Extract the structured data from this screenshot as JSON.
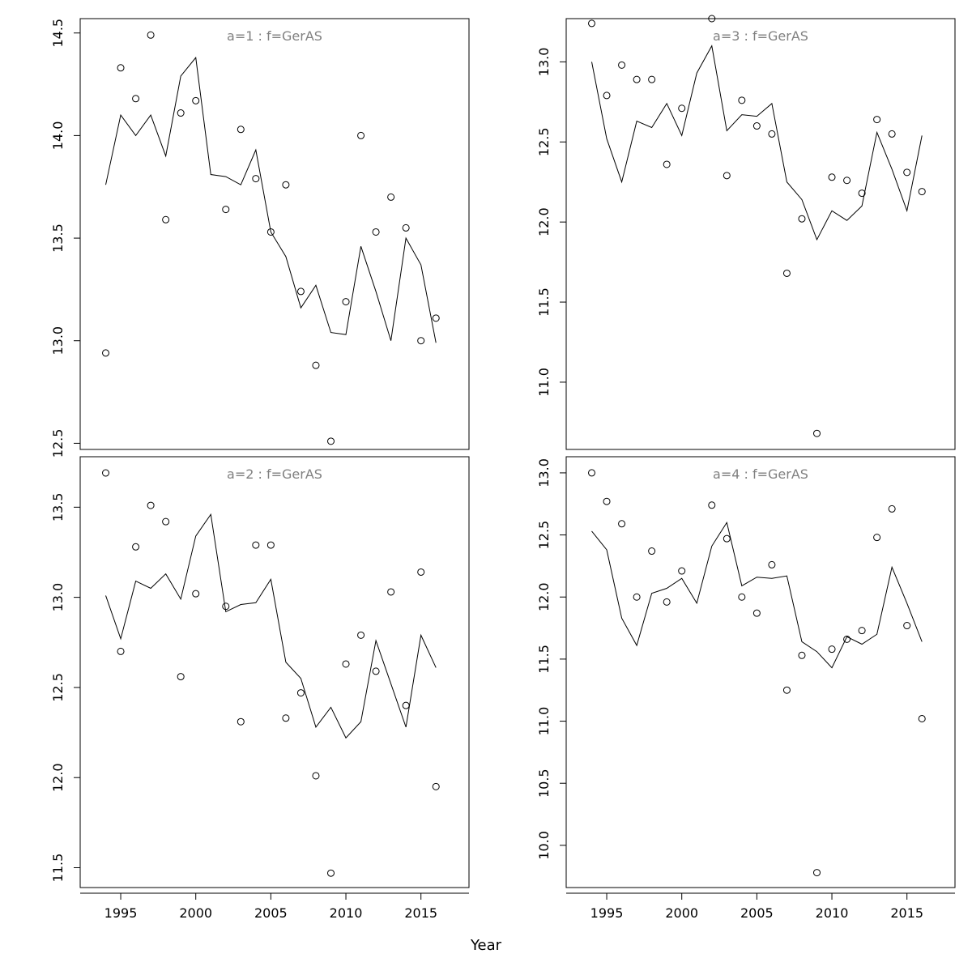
{
  "xlabel": "Year",
  "chart_data": [
    {
      "type": "line",
      "title": "a=1  :  f=GerAS",
      "xlim": [
        1992.3,
        2018.2
      ],
      "ylim": [
        12.47,
        14.57
      ],
      "x_ticks": [
        1995,
        2000,
        2005,
        2010,
        2015
      ],
      "y_ticks": [
        12.5,
        13.0,
        13.5,
        14.0,
        14.5
      ],
      "y_tick_labels": [
        "12.5",
        "13.0",
        "13.5",
        "14.0",
        "14.5"
      ],
      "show_x_axis": false,
      "x": [
        1994,
        1995,
        1996,
        1997,
        1998,
        1999,
        2000,
        2001,
        2002,
        2003,
        2004,
        2005,
        2006,
        2007,
        2008,
        2009,
        2010,
        2011,
        2012,
        2013,
        2014,
        2015,
        2016
      ],
      "points": [
        12.94,
        14.33,
        14.18,
        14.49,
        13.59,
        14.11,
        14.17,
        null,
        13.64,
        14.03,
        13.79,
        13.53,
        13.76,
        13.24,
        12.88,
        12.51,
        13.19,
        14.0,
        13.53,
        13.7,
        13.55,
        13.0,
        13.11
      ],
      "fitted": [
        13.76,
        14.1,
        14.0,
        14.1,
        13.9,
        14.29,
        14.38,
        13.81,
        13.8,
        13.76,
        13.93,
        13.53,
        13.41,
        13.16,
        13.27,
        13.04,
        13.03,
        13.46,
        13.24,
        13.0,
        13.5,
        13.37,
        12.99
      ]
    },
    {
      "type": "line",
      "title": "a=3  :  f=GerAS",
      "xlim": [
        1992.3,
        2018.2
      ],
      "ylim": [
        10.58,
        13.27
      ],
      "x_ticks": [
        1995,
        2000,
        2005,
        2010,
        2015
      ],
      "y_ticks": [
        11.0,
        11.5,
        12.0,
        12.5,
        13.0
      ],
      "y_tick_labels": [
        "11.0",
        "11.5",
        "12.0",
        "12.5",
        "13.0"
      ],
      "show_x_axis": false,
      "x": [
        1994,
        1995,
        1996,
        1997,
        1998,
        1999,
        2000,
        2001,
        2002,
        2003,
        2004,
        2005,
        2006,
        2007,
        2008,
        2009,
        2010,
        2011,
        2012,
        2013,
        2014,
        2015,
        2016
      ],
      "points": [
        13.24,
        12.79,
        12.98,
        12.89,
        12.89,
        12.36,
        12.71,
        null,
        13.27,
        12.29,
        12.76,
        12.6,
        12.55,
        11.68,
        12.02,
        10.68,
        12.28,
        12.26,
        12.18,
        12.64,
        12.55,
        12.31,
        12.19
      ],
      "fitted": [
        13.0,
        12.52,
        12.25,
        12.63,
        12.59,
        12.74,
        12.54,
        12.93,
        13.1,
        12.57,
        12.67,
        12.66,
        12.74,
        12.25,
        12.14,
        11.89,
        12.07,
        12.01,
        12.1,
        12.56,
        12.33,
        12.07,
        12.54
      ]
    },
    {
      "type": "line",
      "title": "a=2  :  f=GerAS",
      "xlim": [
        1992.3,
        2018.2
      ],
      "ylim": [
        11.39,
        13.78
      ],
      "x_ticks": [
        1995,
        2000,
        2005,
        2010,
        2015
      ],
      "y_ticks": [
        11.5,
        12.0,
        12.5,
        13.0,
        13.5
      ],
      "y_tick_labels": [
        "11.5",
        "12.0",
        "12.5",
        "13.0",
        "13.5"
      ],
      "show_x_axis": true,
      "x": [
        1994,
        1995,
        1996,
        1997,
        1998,
        1999,
        2000,
        2001,
        2002,
        2003,
        2004,
        2005,
        2006,
        2007,
        2008,
        2009,
        2010,
        2011,
        2012,
        2013,
        2014,
        2015,
        2016
      ],
      "points": [
        13.69,
        12.7,
        13.28,
        13.51,
        13.42,
        12.56,
        13.02,
        null,
        12.95,
        12.31,
        13.29,
        13.29,
        12.33,
        12.47,
        12.01,
        11.47,
        12.63,
        12.79,
        12.59,
        13.03,
        12.4,
        13.14,
        11.95
      ],
      "fitted": [
        13.01,
        12.77,
        13.09,
        13.05,
        13.13,
        12.99,
        13.34,
        13.46,
        12.92,
        12.96,
        12.97,
        13.1,
        12.64,
        12.55,
        12.28,
        12.39,
        12.22,
        12.31,
        12.76,
        12.52,
        12.28,
        12.79,
        12.61
      ]
    },
    {
      "type": "line",
      "title": "a=4  :  f=GerAS",
      "xlim": [
        1992.3,
        2018.2
      ],
      "ylim": [
        9.66,
        13.13
      ],
      "x_ticks": [
        1995,
        2000,
        2005,
        2010,
        2015
      ],
      "y_ticks": [
        10.0,
        10.5,
        11.0,
        11.5,
        12.0,
        12.5,
        13.0
      ],
      "y_tick_labels": [
        "10.0",
        "10.5",
        "11.0",
        "11.5",
        "12.0",
        "12.5",
        "13.0"
      ],
      "show_x_axis": true,
      "x": [
        1994,
        1995,
        1996,
        1997,
        1998,
        1999,
        2000,
        2001,
        2002,
        2003,
        2004,
        2005,
        2006,
        2007,
        2008,
        2009,
        2010,
        2011,
        2012,
        2013,
        2014,
        2015,
        2016
      ],
      "points": [
        13.0,
        12.77,
        12.59,
        12.0,
        12.37,
        11.96,
        12.21,
        null,
        12.74,
        12.47,
        12.0,
        11.87,
        12.26,
        11.25,
        11.53,
        9.78,
        11.58,
        11.66,
        11.73,
        12.48,
        12.71,
        11.77,
        11.02
      ],
      "fitted": [
        12.53,
        12.38,
        11.83,
        11.61,
        12.03,
        12.07,
        12.15,
        11.95,
        12.41,
        12.6,
        12.09,
        12.16,
        12.15,
        12.17,
        11.64,
        11.56,
        11.43,
        11.68,
        11.62,
        11.7,
        12.24,
        11.95,
        11.64
      ]
    }
  ]
}
